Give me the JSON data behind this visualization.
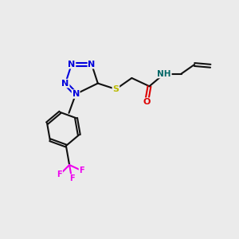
{
  "bg_color": "#ebebeb",
  "bond_color": "#111111",
  "N_color": "#0000dd",
  "S_color": "#bbbb00",
  "O_color": "#dd0000",
  "F_color": "#ee00ee",
  "NH_color": "#006666",
  "lw": 1.5,
  "fs": 8.0,
  "fig_w": 3.0,
  "fig_h": 3.0,
  "dpi": 100,
  "xlim": [
    0,
    10
  ],
  "ylim": [
    0,
    10
  ]
}
